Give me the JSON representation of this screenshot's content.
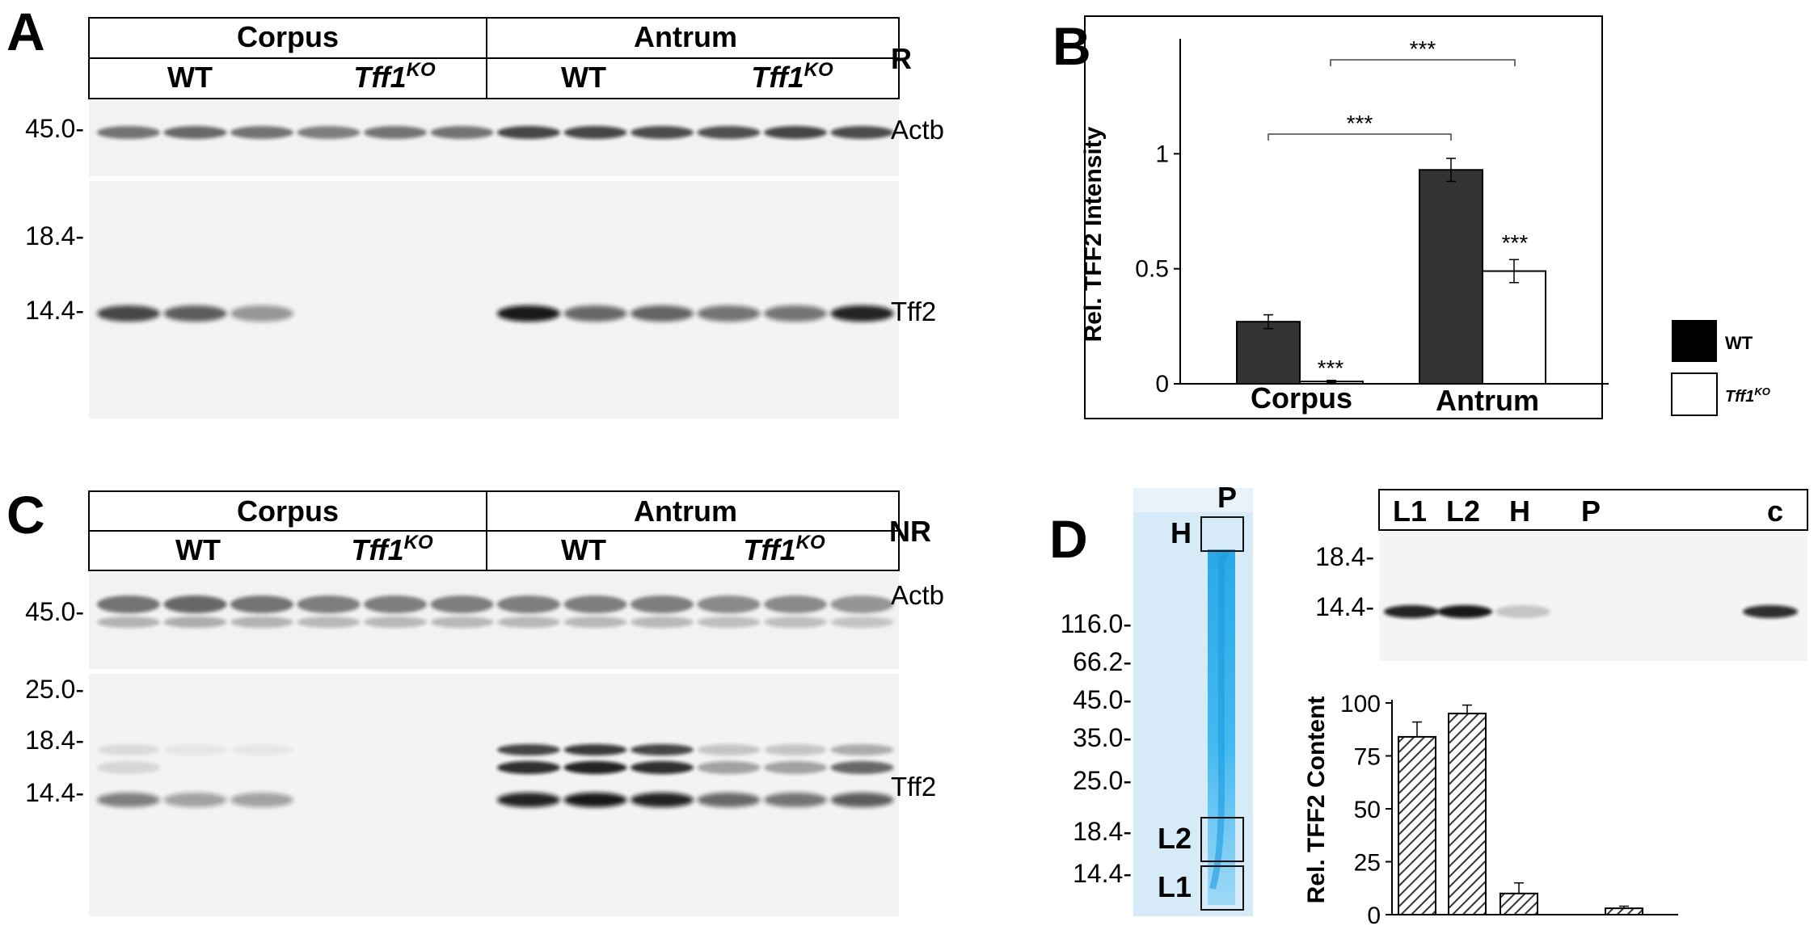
{
  "panels": {
    "A": {
      "letter": "A",
      "groups": [
        "Corpus",
        "Antrum"
      ],
      "genotypes": [
        "WT",
        "Tff1",
        "WT",
        "Tff1"
      ],
      "genotype_sup": "KO",
      "condition": "R",
      "markers": [
        "45.0-",
        "18.4-",
        "14.4-"
      ],
      "bands": [
        "Actb",
        "Tff2"
      ],
      "actb_intensity": [
        0.55,
        0.6,
        0.55,
        0.5,
        0.55,
        0.55,
        0.75,
        0.75,
        0.72,
        0.7,
        0.75,
        0.72
      ],
      "tff2_intensity": [
        0.75,
        0.65,
        0.4,
        0,
        0,
        0,
        0.95,
        0.6,
        0.62,
        0.55,
        0.55,
        0.9
      ]
    },
    "C": {
      "letter": "C",
      "groups": [
        "Corpus",
        "Antrum"
      ],
      "genotypes": [
        "WT",
        "Tff1",
        "WT",
        "Tff1"
      ],
      "genotype_sup": "KO",
      "condition": "NR",
      "markers": [
        "45.0-",
        "25.0-",
        "18.4-",
        "14.4-"
      ],
      "bands": [
        "Actb",
        "Tff2"
      ],
      "actb_intensity": [
        0.55,
        0.6,
        0.55,
        0.5,
        0.5,
        0.5,
        0.5,
        0.5,
        0.5,
        0.45,
        0.45,
        0.4
      ],
      "tff2_upper_intensity": [
        0.1,
        0.05,
        0.05,
        0,
        0,
        0,
        0.75,
        0.8,
        0.75,
        0.2,
        0.2,
        0.3
      ],
      "tff2_middle_intensity": [
        0.12,
        0,
        0,
        0,
        0,
        0,
        0.85,
        0.9,
        0.85,
        0.35,
        0.35,
        0.6
      ],
      "tff2_lower_intensity": [
        0.5,
        0.35,
        0.35,
        0,
        0,
        0,
        0.9,
        0.95,
        0.9,
        0.6,
        0.55,
        0.65
      ]
    },
    "D": {
      "letter": "D",
      "gel_markers": [
        "116.0-",
        "66.2-",
        "45.0-",
        "35.0-",
        "25.0-",
        "18.4-",
        "14.4-"
      ],
      "gel_labels": {
        "top": "P",
        "h": "H",
        "l2": "L2",
        "l1": "L1"
      },
      "blot_lanes": [
        "L1",
        "L2",
        "H",
        "P",
        "c"
      ],
      "blot_markers": [
        "18.4-",
        "14.4-"
      ],
      "blot_intensity": [
        0.9,
        0.95,
        0.2,
        0,
        0.85
      ]
    }
  },
  "chart_data": [
    {
      "type": "bar",
      "panel": "B",
      "title": "",
      "xlabel": "",
      "ylabel": "Rel. TFF2 Intensity",
      "ylim": [
        0,
        1.5
      ],
      "yticks": [
        "0",
        "0.5",
        "1"
      ],
      "categories": [
        "Corpus",
        "Antrum"
      ],
      "series": [
        {
          "name": "WT",
          "values": [
            0.27,
            0.93
          ],
          "errors": [
            0.03,
            0.05
          ],
          "color": "#333333"
        },
        {
          "name": "Tff1",
          "name_sup": "KO",
          "values": [
            0.01,
            0.49
          ],
          "errors": [
            0.005,
            0.05
          ],
          "color": "#ffffff"
        }
      ],
      "significance": [
        "***",
        "***",
        "***",
        "***"
      ],
      "legend": "right"
    },
    {
      "type": "bar",
      "panel": "D",
      "title": "",
      "xlabel": "",
      "ylabel": "Rel. TFF2 Content",
      "ylim": [
        0,
        100
      ],
      "yticks": [
        "0",
        "25",
        "50",
        "75",
        "100"
      ],
      "categories": [
        "L1",
        "L2",
        "H",
        "P"
      ],
      "values": [
        84,
        95,
        10,
        3
      ],
      "errors": [
        7,
        4,
        5,
        1
      ],
      "fill": "hatched"
    }
  ]
}
